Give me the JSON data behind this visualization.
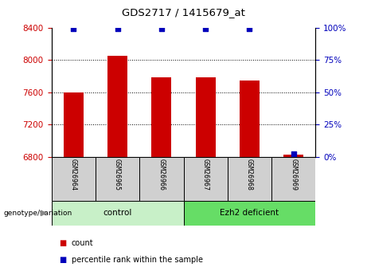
{
  "title": "GDS2717 / 1415679_at",
  "samples": [
    "GSM26964",
    "GSM26965",
    "GSM26966",
    "GSM26967",
    "GSM26968",
    "GSM26969"
  ],
  "counts": [
    7600,
    8050,
    7780,
    7780,
    7740,
    6830
  ],
  "percentiles": [
    99,
    99,
    99,
    99,
    99,
    2
  ],
  "ylim_left": [
    6800,
    8400
  ],
  "ylim_right": [
    0,
    100
  ],
  "yticks_left": [
    6800,
    7200,
    7600,
    8000,
    8400
  ],
  "yticks_right": [
    0,
    25,
    50,
    75,
    100
  ],
  "groups": [
    {
      "label": "control",
      "start": 0,
      "end": 3,
      "color": "#c8f0c8"
    },
    {
      "label": "Ezh2 deficient",
      "start": 3,
      "end": 6,
      "color": "#66dd66"
    }
  ],
  "bar_color": "#cc0000",
  "dot_color": "#0000bb",
  "bar_width": 0.45,
  "grid_color": "#000000",
  "bg_color": "#ffffff",
  "label_color_left": "#cc0000",
  "label_color_right": "#0000bb",
  "legend_count_color": "#cc0000",
  "legend_pct_color": "#0000bb",
  "genotype_label": "genotype/variation",
  "xlabel_box_color": "#d0d0d0"
}
